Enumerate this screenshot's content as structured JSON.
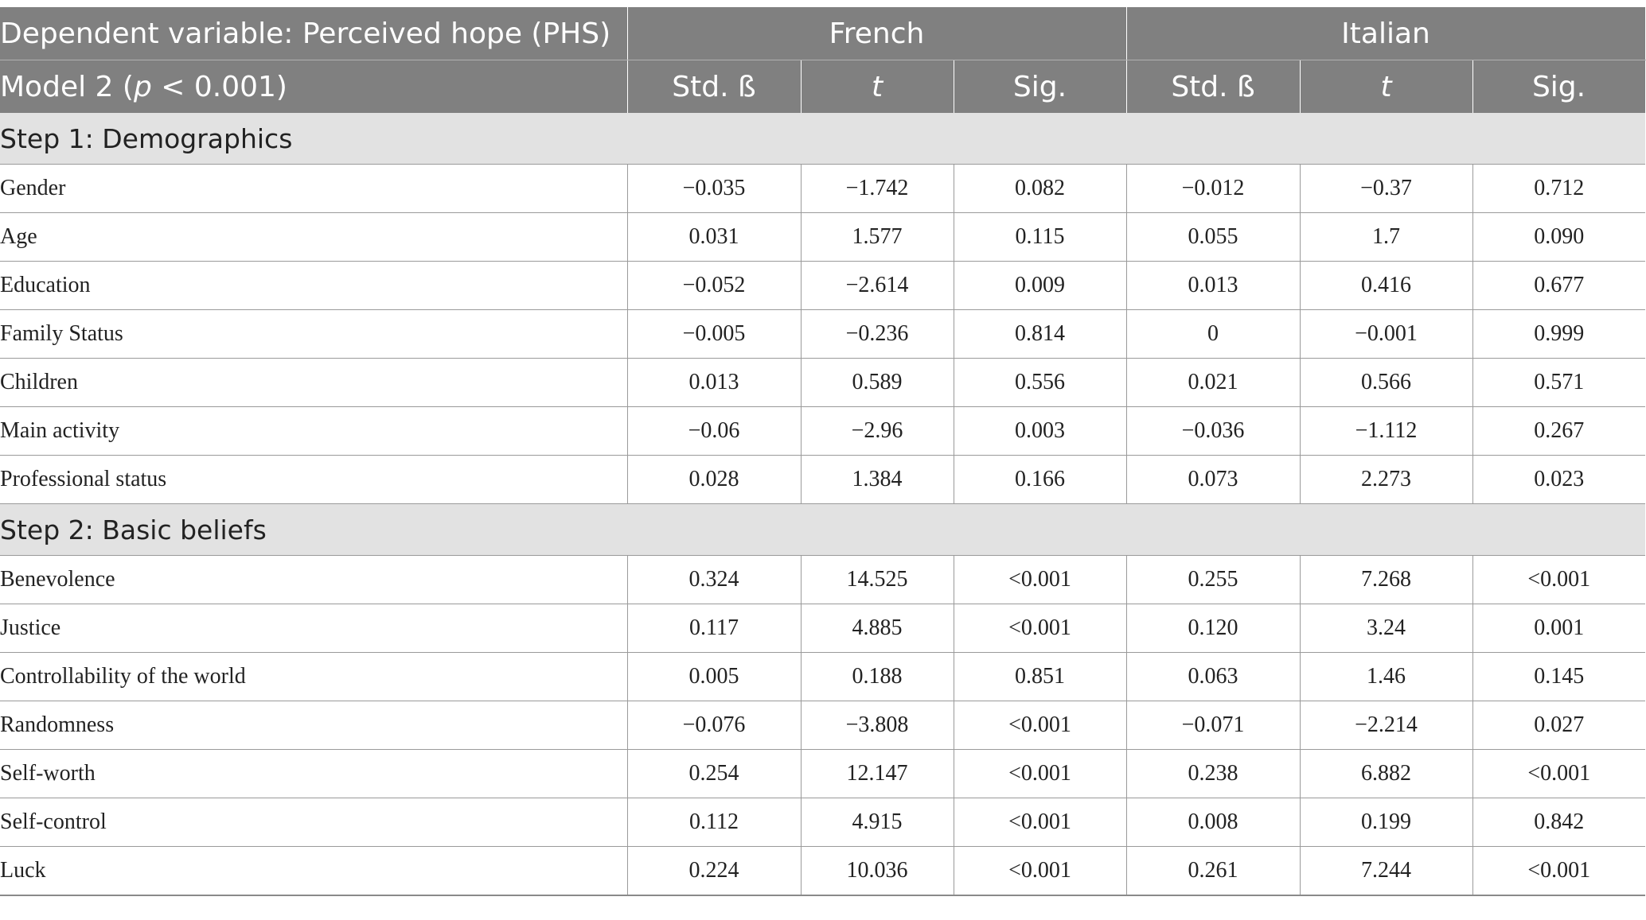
{
  "header": {
    "dependent_variable": "Dependent variable: Perceived hope (PHS)",
    "model_prefix": "Model 2 (",
    "model_p": "p",
    "model_suffix": " < 0.001)",
    "group_french": "French",
    "group_italian": "Italian",
    "col_beta": "Std. ß",
    "col_t": "t",
    "col_sig": "Sig."
  },
  "sections": [
    {
      "title": "Step 1: Demographics",
      "rows": [
        {
          "label": "Gender",
          "fr_beta": "−0.035",
          "fr_t": "−1.742",
          "fr_sig": "0.082",
          "it_beta": "−0.012",
          "it_t": "−0.37",
          "it_sig": "0.712"
        },
        {
          "label": "Age",
          "fr_beta": "0.031",
          "fr_t": "1.577",
          "fr_sig": "0.115",
          "it_beta": "0.055",
          "it_t": "1.7",
          "it_sig": "0.090"
        },
        {
          "label": "Education",
          "fr_beta": "−0.052",
          "fr_t": "−2.614",
          "fr_sig": "0.009",
          "it_beta": "0.013",
          "it_t": "0.416",
          "it_sig": "0.677"
        },
        {
          "label": "Family Status",
          "fr_beta": "−0.005",
          "fr_t": "−0.236",
          "fr_sig": "0.814",
          "it_beta": "0",
          "it_t": "−0.001",
          "it_sig": "0.999"
        },
        {
          "label": "Children",
          "fr_beta": "0.013",
          "fr_t": "0.589",
          "fr_sig": "0.556",
          "it_beta": "0.021",
          "it_t": "0.566",
          "it_sig": "0.571"
        },
        {
          "label": "Main activity",
          "fr_beta": "−0.06",
          "fr_t": "−2.96",
          "fr_sig": "0.003",
          "it_beta": "−0.036",
          "it_t": "−1.112",
          "it_sig": "0.267"
        },
        {
          "label": "Professional status",
          "fr_beta": "0.028",
          "fr_t": "1.384",
          "fr_sig": "0.166",
          "it_beta": "0.073",
          "it_t": "2.273",
          "it_sig": "0.023"
        }
      ]
    },
    {
      "title": "Step 2: Basic beliefs",
      "rows": [
        {
          "label": "Benevolence",
          "fr_beta": "0.324",
          "fr_t": "14.525",
          "fr_sig": "<0.001",
          "it_beta": "0.255",
          "it_t": "7.268",
          "it_sig": "<0.001"
        },
        {
          "label": "Justice",
          "fr_beta": "0.117",
          "fr_t": "4.885",
          "fr_sig": "<0.001",
          "it_beta": "0.120",
          "it_t": "3.24",
          "it_sig": "0.001"
        },
        {
          "label": "Controllability of the world",
          "fr_beta": "0.005",
          "fr_t": "0.188",
          "fr_sig": "0.851",
          "it_beta": "0.063",
          "it_t": "1.46",
          "it_sig": "0.145"
        },
        {
          "label": "Randomness",
          "fr_beta": "−0.076",
          "fr_t": "−3.808",
          "fr_sig": "<0.001",
          "it_beta": "−0.071",
          "it_t": "−2.214",
          "it_sig": "0.027"
        },
        {
          "label": "Self-worth",
          "fr_beta": "0.254",
          "fr_t": "12.147",
          "fr_sig": "<0.001",
          "it_beta": "0.238",
          "it_t": "6.882",
          "it_sig": "<0.001"
        },
        {
          "label": "Self-control",
          "fr_beta": "0.112",
          "fr_t": "4.915",
          "fr_sig": "<0.001",
          "it_beta": "0.008",
          "it_t": "0.199",
          "it_sig": "0.842"
        },
        {
          "label": "Luck",
          "fr_beta": "0.224",
          "fr_t": "10.036",
          "fr_sig": "<0.001",
          "it_beta": "0.261",
          "it_t": "7.244",
          "it_sig": "<0.001"
        }
      ]
    }
  ]
}
